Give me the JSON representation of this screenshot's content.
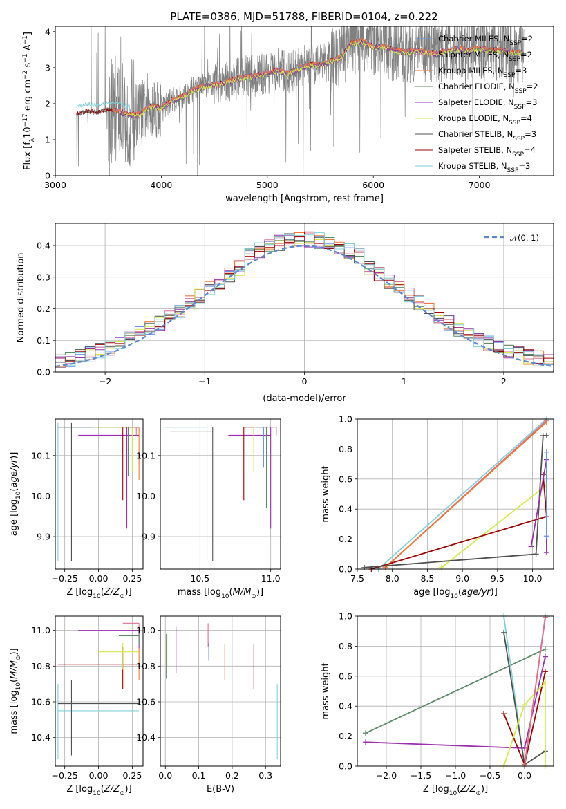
{
  "figure_title": "PLATE=0386, MJD=51788, FIBERID=0104, z=0.222",
  "colors": {
    "data": "#808080",
    "chabrier_miles": "#6495ED",
    "salpeter_miles": "#DB7093",
    "kroupa_miles": "#F07830",
    "chabrier_elodie": "#5A8A68",
    "salpeter_elodie": "#9A30B0",
    "kroupa_elodie": "#D4E84A",
    "chabrier_stelib": "#505050",
    "salpeter_stelib": "#A00000",
    "kroupa_stelib": "#80D0D8",
    "normal_curve": "#5B86D0",
    "grid": "#b0b0b0"
  },
  "chart_data": [
    {
      "id": "spectrum",
      "type": "line",
      "xlabel": "wavelength [Angstrom, rest frame]",
      "ylabel": "Flux [f",
      "ylabel_parts": [
        "Flux [f",
        "λ",
        "10",
        "−17",
        " erg cm",
        "−2",
        " s",
        "−1",
        " A",
        "−1",
        "]"
      ],
      "xlim": [
        3000,
        7700
      ],
      "ylim": [
        0,
        4.15
      ],
      "grid": false,
      "xticks": [
        3000,
        4000,
        5000,
        6000,
        7000
      ],
      "xtick_labels": [
        "3000",
        "4000",
        "5000",
        "6000",
        "7000"
      ],
      "yticks": [
        0,
        1,
        2,
        3,
        4
      ],
      "ytick_labels": [
        "0",
        "1",
        "2",
        "3",
        "4"
      ],
      "legend_placement": "right",
      "legend": [
        {
          "label": "Chabrier MILES, N",
          "sub": "SSP",
          "eq": "=2",
          "color": "chabrier_miles"
        },
        {
          "label": "Salpeter MILES, N",
          "sub": "SSP",
          "eq": "=2",
          "color": "salpeter_miles"
        },
        {
          "label": "Kroupa MILES, N",
          "sub": "SSP",
          "eq": "=3",
          "color": "kroupa_miles"
        },
        {
          "label": "Chabrier ELODIE, N",
          "sub": "SSP",
          "eq": "=2",
          "color": "chabrier_elodie"
        },
        {
          "label": "Salpeter ELODIE, N",
          "sub": "SSP",
          "eq": "=3",
          "color": "salpeter_elodie"
        },
        {
          "label": "Kroupa ELODIE, N",
          "sub": "SSP",
          "eq": "=4",
          "color": "kroupa_elodie"
        },
        {
          "label": "Chabrier STELIB, N",
          "sub": "SSP",
          "eq": "=3",
          "color": "chabrier_stelib"
        },
        {
          "label": "Salpeter STELIB, N",
          "sub": "SSP",
          "eq": "=4",
          "color": "salpeter_stelib"
        },
        {
          "label": "Kroupa STELIB, N",
          "sub": "SSP",
          "eq": "=3",
          "color": "kroupa_stelib"
        }
      ],
      "continuum": {
        "x": [
          3200,
          3250,
          3300,
          3400,
          3500,
          3600,
          3700,
          3800,
          3900,
          4000,
          4100,
          4200,
          4300,
          4400,
          4500,
          4600,
          4700,
          4800,
          4900,
          5000,
          5100,
          5200,
          5300,
          5400,
          5500,
          5600,
          5700,
          5750,
          5800,
          5900,
          6000,
          6100,
          6200,
          6300,
          6400,
          6500,
          6600,
          6700,
          6800,
          6900,
          7000,
          7100,
          7200,
          7300,
          7400
        ],
        "y": [
          1.7,
          1.75,
          1.8,
          1.75,
          1.85,
          1.8,
          1.7,
          1.75,
          1.95,
          1.9,
          2.1,
          2.2,
          2.4,
          2.5,
          2.55,
          2.6,
          2.7,
          2.75,
          2.8,
          2.85,
          2.95,
          2.85,
          3.0,
          3.1,
          3.1,
          3.2,
          3.3,
          3.55,
          3.7,
          3.75,
          3.6,
          3.6,
          3.5,
          3.45,
          3.5,
          3.45,
          3.4,
          3.5,
          3.55,
          3.5,
          3.55,
          3.5,
          3.5,
          3.45,
          3.45
        ]
      },
      "data_start": 3200,
      "data_end": 7420
    },
    {
      "id": "residuals",
      "type": "line",
      "xlabel": "(data-model)/error",
      "ylabel": "Normed distribution",
      "xlim": [
        -2.5,
        2.5
      ],
      "ylim": [
        0,
        0.47
      ],
      "grid": true,
      "xticks": [
        -2,
        -1,
        0,
        1,
        2
      ],
      "xtick_labels": [
        "−2",
        "−1",
        "0",
        "1",
        "2"
      ],
      "yticks": [
        0.0,
        0.1,
        0.2,
        0.3,
        0.4
      ],
      "ytick_labels": [
        "0.0",
        "0.1",
        "0.2",
        "0.3",
        "0.4"
      ],
      "legend_placement": "top-right",
      "legend": [
        {
          "label": "𝒩(0, 1)",
          "color": "normal_curve"
        }
      ],
      "bin_width": 0.1,
      "series_note": "step histograms, one per model"
    },
    {
      "id": "age_vs_Z",
      "type": "scatter",
      "xlabel": "Z [log",
      "xlabel_parts": [
        "Z [log",
        "10",
        "(Z/Z",
        "⊙",
        ")]"
      ],
      "ylabel": "age  [log",
      "ylabel_parts": [
        "age  [log",
        "10",
        "(age/yr)]"
      ],
      "xlim": [
        -0.32,
        0.33
      ],
      "ylim": [
        9.82,
        10.19
      ],
      "grid": true,
      "xticks": [
        -0.25,
        0.0,
        0.25
      ],
      "xtick_labels": [
        "−0.25",
        "0.00",
        "0.25"
      ],
      "yticks": [
        9.9,
        10.0,
        10.1
      ],
      "ytick_labels": [
        "9.9",
        "10.0",
        "10.1"
      ],
      "errorbars": [
        {
          "color": "kroupa_stelib",
          "x": -0.3,
          "xerr": [
            0,
            0.6
          ],
          "y": 10.17,
          "yerr": [
            0.33,
            0.01
          ]
        },
        {
          "color": "chabrier_stelib",
          "x": -0.2,
          "xerr": [
            0.1,
            0.5
          ],
          "y": 10.17,
          "yerr": [
            0.33,
            0.01
          ]
        },
        {
          "color": "salpeter_elodie",
          "x": 0.21,
          "xerr": [
            0.36,
            0.09
          ],
          "y": 10.15,
          "yerr": [
            0.23,
            0.02
          ]
        },
        {
          "color": "salpeter_stelib",
          "x": 0.18,
          "xerr": [
            0.0,
            0.12
          ],
          "y": 10.17,
          "yerr": [
            0.18,
            0.0
          ]
        },
        {
          "color": "kroupa_elodie",
          "x": 0.25,
          "xerr": [
            0.3,
            0.05
          ],
          "y": 10.17,
          "yerr": [
            0.11,
            0.0
          ]
        },
        {
          "color": "kroupa_miles",
          "x": 0.3,
          "xerr": [
            0.05,
            0.0
          ],
          "y": 10.17,
          "yerr": [
            0.13,
            0.0
          ]
        },
        {
          "color": "salpeter_miles",
          "x": 0.28,
          "xerr": [
            0.04,
            0.02
          ],
          "y": 10.17,
          "yerr": [
            0.02,
            0.0
          ]
        },
        {
          "color": "chabrier_elodie",
          "x": 0.22,
          "xerr": [
            0.01,
            0.01
          ],
          "y": 10.17,
          "yerr": [
            0.12,
            0.0
          ]
        }
      ]
    },
    {
      "id": "age_vs_mass",
      "type": "scatter",
      "xlabel": "mass [log",
      "xlabel_parts": [
        "mass [log",
        "10",
        "(M/M",
        "⊙",
        ")]"
      ],
      "xlim": [
        10.22,
        11.07
      ],
      "ylim": [
        9.82,
        10.19
      ],
      "grid": true,
      "xticks": [
        10.5,
        11.0
      ],
      "xtick_labels": [
        "10.5",
        "11.0"
      ],
      "yticks": [
        9.9,
        10.0,
        10.1
      ],
      "ytick_labels": [
        "9.9",
        "10.0",
        "10.1"
      ],
      "errorbars": [
        {
          "color": "kroupa_stelib",
          "x": 10.55,
          "xerr": [
            0.3,
            0.0
          ],
          "y": 10.17,
          "yerr": [
            0.33,
            0.01
          ]
        },
        {
          "color": "chabrier_stelib",
          "x": 10.59,
          "xerr": [
            0.3,
            0.0
          ],
          "y": 10.16,
          "yerr": [
            0.32,
            0.01
          ]
        },
        {
          "color": "salpeter_elodie",
          "x": 11.0,
          "xerr": [
            0.3,
            0.0
          ],
          "y": 10.15,
          "yerr": [
            0.23,
            0.02
          ]
        },
        {
          "color": "salpeter_stelib",
          "x": 10.81,
          "xerr": [
            0.0,
            0.08
          ],
          "y": 10.17,
          "yerr": [
            0.18,
            0.0
          ]
        },
        {
          "color": "kroupa_elodie",
          "x": 10.88,
          "xerr": [
            0.0,
            0.05
          ],
          "y": 10.17,
          "yerr": [
            0.11,
            0.0
          ]
        },
        {
          "color": "chabrier_elodie",
          "x": 10.97,
          "xerr": [
            0.05,
            0.0
          ],
          "y": 10.17,
          "yerr": [
            0.2,
            0.0
          ]
        },
        {
          "color": "salpeter_miles",
          "x": 11.04,
          "xerr": [
            0.1,
            0.0
          ],
          "y": 10.17,
          "yerr": [
            0.02,
            0.0
          ]
        },
        {
          "color": "chabrier_miles",
          "x": 10.95,
          "xerr": [
            0.05,
            0.0
          ],
          "y": 10.17,
          "yerr": [
            0.1,
            0.0
          ]
        }
      ]
    },
    {
      "id": "mw_vs_age",
      "type": "line",
      "xlabel": "age  [log",
      "xlabel_parts": [
        "age  [log",
        "10",
        "(age/yr)]"
      ],
      "ylabel": "mass weight",
      "xlim": [
        7.5,
        10.3
      ],
      "ylim": [
        0,
        1.0
      ],
      "grid": true,
      "xticks": [
        7.5,
        8.0,
        8.5,
        9.0,
        9.5,
        10.0
      ],
      "xtick_labels": [
        "7.5",
        "8.0",
        "8.5",
        "9.0",
        "9.5",
        "10.0"
      ],
      "yticks": [
        0.0,
        0.2,
        0.4,
        0.6,
        0.8,
        1.0
      ],
      "ytick_labels": [
        "0.0",
        "0.2",
        "0.4",
        "0.6",
        "0.8",
        "1.0"
      ],
      "series": [
        {
          "color": "kroupa_stelib",
          "x": [
            7.8,
            10.2
          ],
          "y": [
            0.0,
            1.0
          ]
        },
        {
          "color": "salpeter_miles",
          "x": [
            7.9,
            10.2
          ],
          "y": [
            0.01,
            0.99
          ]
        },
        {
          "color": "kroupa_miles",
          "x": [
            7.9,
            10.2
          ],
          "y": [
            0.01,
            0.98
          ]
        },
        {
          "color": "kroupa_elodie",
          "x": [
            8.7,
            10.2
          ],
          "y": [
            0.01,
            0.56
          ]
        },
        {
          "color": "salpeter_stelib",
          "x": [
            7.7,
            10.2,
            10.15
          ],
          "y": [
            0.0,
            0.35,
            0.63
          ]
        },
        {
          "color": "chabrier_stelib",
          "x": [
            7.6,
            10.05,
            10.15,
            10.2
          ],
          "y": [
            0.01,
            0.1,
            0.89,
            0.89
          ]
        },
        {
          "color": "salpeter_elodie",
          "x": [
            9.98,
            10.2,
            10.2
          ],
          "y": [
            0.15,
            0.73,
            0.11
          ]
        },
        {
          "color": "chabrier_miles",
          "x": [
            10.2,
            10.2
          ],
          "y": [
            0.22,
            0.78
          ]
        }
      ]
    },
    {
      "id": "mass_vs_Z",
      "type": "scatter",
      "xlabel": "Z [log",
      "xlabel_parts": [
        "Z [log",
        "10",
        "(Z/Z",
        "⊙",
        ")]"
      ],
      "ylabel": "mass [log",
      "ylabel_parts": [
        "mass [log",
        "10",
        "(M/M",
        "⊙",
        ")]"
      ],
      "xlim": [
        -0.32,
        0.33
      ],
      "ylim": [
        10.24,
        11.08
      ],
      "grid": true,
      "xticks": [
        -0.25,
        0.0,
        0.25
      ],
      "xtick_labels": [
        "−0.25",
        "0.00",
        "0.25"
      ],
      "yticks": [
        10.4,
        10.6,
        10.8,
        11.0
      ],
      "ytick_labels": [
        "10.4",
        "10.6",
        "10.8",
        "11.0"
      ],
      "errorbars": [
        {
          "color": "kroupa_stelib",
          "x": -0.3,
          "xerr": [
            0,
            0.6
          ],
          "y": 10.55,
          "yerr": [
            0.27,
            0.15
          ]
        },
        {
          "color": "chabrier_stelib",
          "x": -0.2,
          "xerr": [
            0.1,
            0.5
          ],
          "y": 10.59,
          "yerr": [
            0.29,
            0.13
          ]
        },
        {
          "color": "salpeter_stelib",
          "x": 0.18,
          "xerr": [
            0.48,
            0.12
          ],
          "y": 10.81,
          "yerr": [
            0.14,
            0.1
          ]
        },
        {
          "color": "kroupa_elodie",
          "x": 0.18,
          "xerr": [
            0.18,
            0.12
          ],
          "y": 10.88,
          "yerr": [
            0.1,
            0.05
          ]
        },
        {
          "color": "salpeter_elodie",
          "x": 0.3,
          "xerr": [
            0.45,
            0.0
          ],
          "y": 11.0,
          "yerr": [
            0.1,
            0.0
          ]
        },
        {
          "color": "chabrier_elodie",
          "x": 0.3,
          "xerr": [
            0.15,
            0.0
          ],
          "y": 10.97,
          "yerr": [
            0.05,
            0.0
          ]
        },
        {
          "color": "salpeter_miles",
          "x": 0.3,
          "xerr": [
            0.12,
            0.0
          ],
          "y": 11.04,
          "yerr": [
            0.05,
            0.0
          ]
        },
        {
          "color": "kroupa_miles",
          "x": 0.3,
          "xerr": [
            0.0,
            0.0
          ],
          "y": 10.9,
          "yerr": [
            0.18,
            0.0
          ]
        }
      ]
    },
    {
      "id": "mass_vs_EBV",
      "type": "scatter",
      "xlabel": "E(B-V)",
      "xlim": [
        -0.015,
        0.345
      ],
      "ylim": [
        10.24,
        11.08
      ],
      "grid": true,
      "xticks": [
        0.0,
        0.1,
        0.2,
        0.3
      ],
      "xtick_labels": [
        "0.0",
        "0.1",
        "0.2",
        "0.3"
      ],
      "yticks": [
        10.4,
        10.6,
        10.8,
        11.0
      ],
      "ytick_labels": [
        "10.4",
        "10.6",
        "10.8",
        "11.0"
      ],
      "errorbars": [
        {
          "color": "chabrier_elodie",
          "x": 0.003,
          "y": 10.85,
          "yerr": [
            0.12,
            0.13
          ]
        },
        {
          "color": "kroupa_elodie",
          "x": 0.005,
          "y": 10.9,
          "yerr": [
            0.1,
            0.08
          ]
        },
        {
          "color": "salpeter_elodie",
          "x": 0.032,
          "y": 10.9,
          "yerr": [
            0.14,
            0.12
          ]
        },
        {
          "color": "salpeter_miles",
          "x": 0.128,
          "y": 10.97,
          "yerr": [
            0.06,
            0.07
          ]
        },
        {
          "color": "chabrier_miles",
          "x": 0.13,
          "y": 10.88,
          "yerr": [
            0.05,
            0.05
          ]
        },
        {
          "color": "kroupa_miles",
          "x": 0.178,
          "y": 10.82,
          "yerr": [
            0.1,
            0.1
          ]
        },
        {
          "color": "salpeter_stelib",
          "x": 0.265,
          "y": 10.79,
          "yerr": [
            0.12,
            0.13
          ]
        },
        {
          "color": "kroupa_stelib",
          "x": 0.335,
          "y": 10.5,
          "yerr": [
            0.22,
            0.2
          ]
        }
      ]
    },
    {
      "id": "mw_vs_Z",
      "type": "line",
      "xlabel": "Z [log",
      "xlabel_parts": [
        "Z [log",
        "10",
        "(Z/Z",
        "⊙",
        ")]"
      ],
      "ylabel": "mass weight",
      "xlim": [
        -2.42,
        0.42
      ],
      "ylim": [
        0,
        1.0
      ],
      "grid": true,
      "xticks": [
        -2.0,
        -1.5,
        -1.0,
        -0.5,
        0.0
      ],
      "xtick_labels": [
        "−2.0",
        "−1.5",
        "−1.0",
        "−0.5",
        "0.0"
      ],
      "yticks": [
        0.0,
        0.2,
        0.4,
        0.6,
        0.8,
        1.0
      ],
      "ytick_labels": [
        "0.0",
        "0.2",
        "0.4",
        "0.6",
        "0.8",
        "1.0"
      ],
      "series": [
        {
          "color": "chabrier_elodie",
          "x": [
            -2.3,
            0.3
          ],
          "y": [
            0.22,
            0.78
          ]
        },
        {
          "color": "salpeter_elodie",
          "x": [
            -2.3,
            0.0,
            0.3
          ],
          "y": [
            0.16,
            0.12,
            0.73
          ]
        },
        {
          "color": "kroupa_stelib",
          "x": [
            -0.3,
            0.0,
            0.3
          ],
          "y": [
            1.0,
            0.0,
            1.0
          ]
        },
        {
          "color": "chabrier_stelib",
          "x": [
            -0.3,
            0.0,
            0.3
          ],
          "y": [
            0.89,
            0.01,
            0.1
          ]
        },
        {
          "color": "salpeter_stelib",
          "x": [
            -0.3,
            0.0,
            0.3
          ],
          "y": [
            0.35,
            0.01,
            0.63
          ]
        },
        {
          "color": "kroupa_elodie",
          "x": [
            -0.3,
            0.0,
            0.3,
            0.3
          ],
          "y": [
            0.0,
            0.41,
            0.56,
            0.0
          ]
        },
        {
          "color": "kroupa_miles",
          "x": [
            0.0,
            0.3
          ],
          "y": [
            0.01,
            0.99
          ]
        },
        {
          "color": "salpeter_miles",
          "x": [
            0.0,
            0.3
          ],
          "y": [
            0.0,
            0.99
          ]
        }
      ]
    }
  ]
}
